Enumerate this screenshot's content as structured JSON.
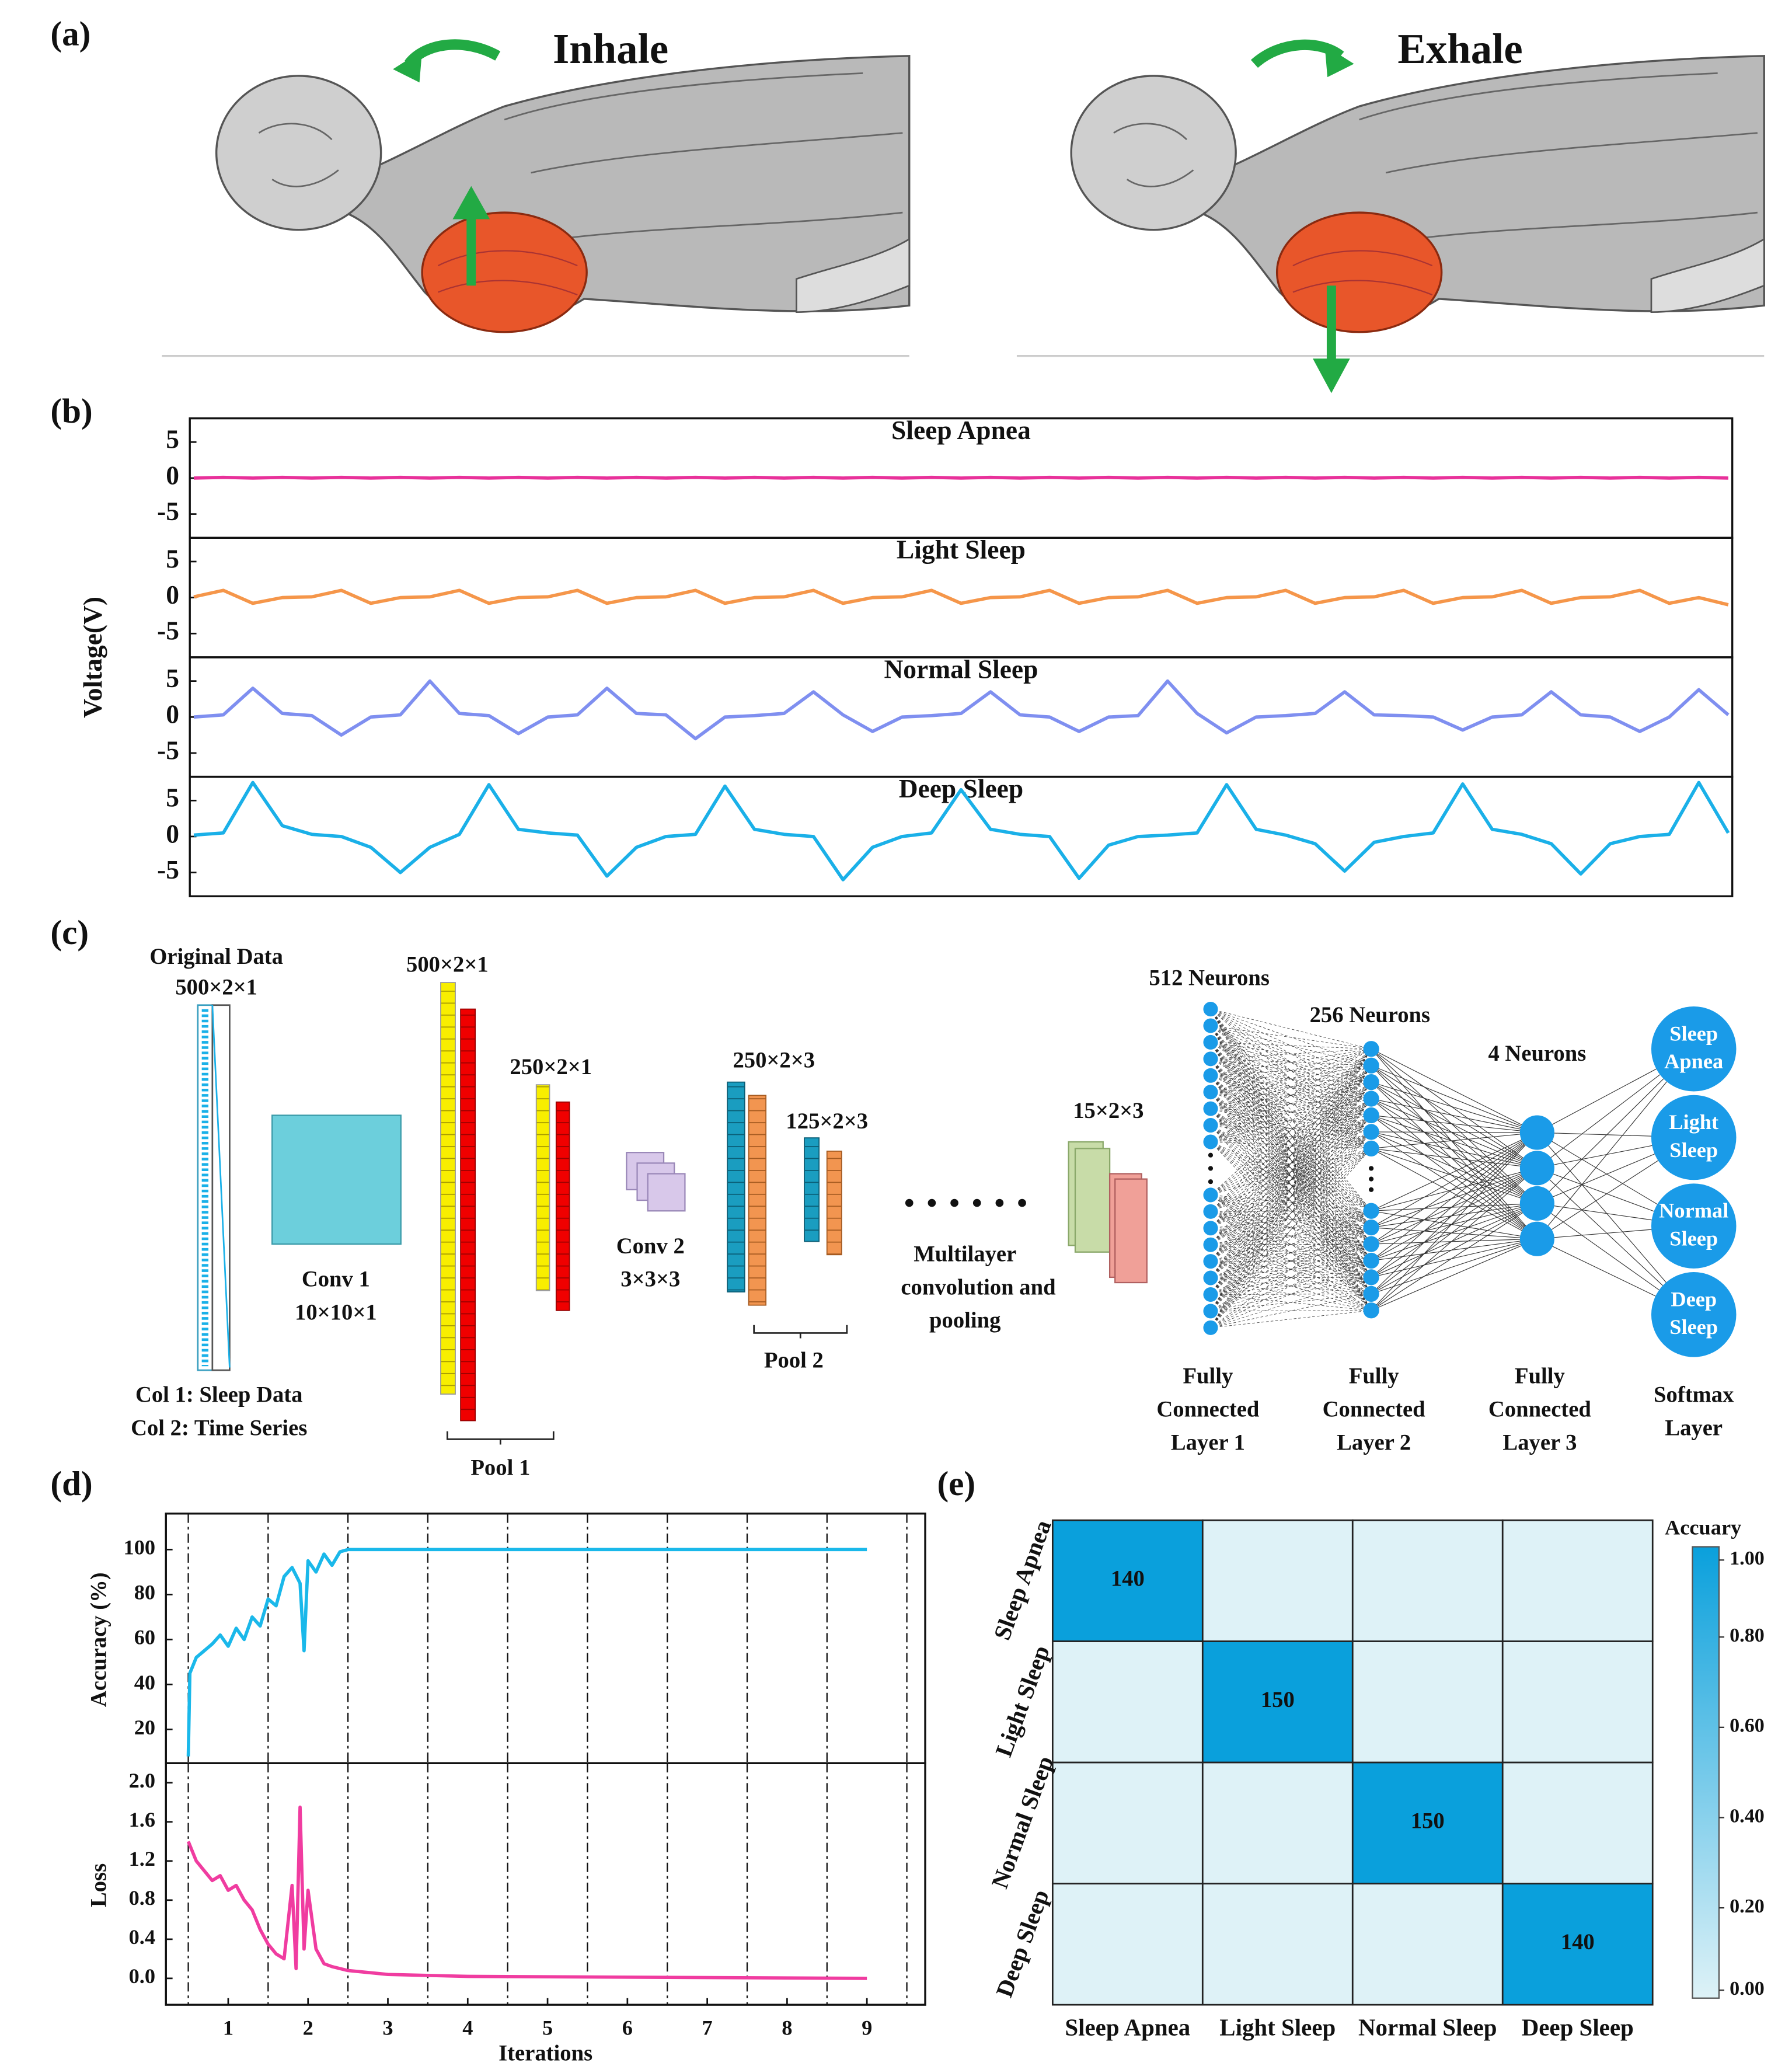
{
  "panel_a": {
    "label": "(a)",
    "inhale": "Inhale",
    "exhale": "Exhale"
  },
  "panel_b": {
    "label": "(b)",
    "ylabel": "Voltage(V)"
  },
  "panel_c": {
    "label": "(c)",
    "original_data": "Original Data",
    "original_size": "500×2×1",
    "col1": "Col 1: Sleep Data",
    "col2": "Col 2: Time  Series",
    "conv1": "Conv 1",
    "conv1_size": "10×10×1",
    "c1_size": "500×2×1",
    "p1_size": "250×2×1",
    "pool1": "Pool 1",
    "conv2": "Conv 2",
    "conv2_size": "3×3×3",
    "c2_size": "250×2×3",
    "p2_size": "125×2×3",
    "pool2": "Pool 2",
    "multi": [
      "Multilayer",
      "convolution and",
      "pooling"
    ],
    "last_size": "15×2×3",
    "n512": "512 Neurons",
    "n256": "256 Neurons",
    "n4": "4 Neurons",
    "outputs": [
      [
        "Sleep",
        "Apnea"
      ],
      [
        "Light",
        "Sleep"
      ],
      [
        "Normal",
        "Sleep"
      ],
      [
        "Deep",
        "Sleep"
      ]
    ],
    "fc1": [
      "Fully",
      "Connected",
      "Layer 1"
    ],
    "fc2": [
      "Fully",
      "Connected",
      "Layer 2"
    ],
    "fc3": [
      "Fully",
      "Connected",
      "Layer 3"
    ],
    "softmax": [
      "Softmax",
      "Layer"
    ]
  },
  "panel_d": {
    "label": "(d)"
  },
  "panel_e": {
    "label": "(e)"
  },
  "chart_data": [
    {
      "type": "line",
      "title": "Sleep Apnea",
      "ylim": [
        -8.3,
        8.3
      ],
      "yticks": [
        -5,
        0,
        5
      ],
      "series": [
        {
          "color": "#e8319a",
          "values": [
            0,
            0.1,
            0,
            0.1,
            0,
            0.1,
            0,
            0.1,
            0,
            0.1,
            0,
            0.1,
            0,
            0.1,
            0,
            0.1,
            0,
            0.1,
            0,
            0.1,
            0,
            0.1,
            0,
            0.1,
            0,
            0.1,
            0,
            0.1,
            0,
            0.1,
            0,
            0.1,
            0,
            0.1,
            0,
            0.1,
            0,
            0.1,
            0,
            0.1,
            0,
            0.1,
            0,
            0.1,
            0,
            0.1,
            0,
            0.1,
            0,
            0.1,
            0,
            0.1,
            0
          ]
        }
      ]
    },
    {
      "type": "line",
      "title": "Light Sleep",
      "ylim": [
        -8.3,
        8.3
      ],
      "yticks": [
        -5,
        0,
        5
      ],
      "series": [
        {
          "color": "#f5964a",
          "values": [
            0.1,
            1,
            -0.8,
            0,
            0.1,
            1,
            -0.8,
            0,
            0.1,
            1,
            -0.8,
            0,
            0.1,
            1,
            -0.8,
            0,
            0.1,
            1,
            -0.8,
            0,
            0.1,
            1,
            -0.8,
            0,
            0.1,
            1,
            -0.8,
            0,
            0.1,
            1,
            -0.8,
            0,
            0.1,
            1,
            -0.8,
            0,
            0.1,
            1,
            -0.8,
            0,
            0.1,
            1,
            -0.8,
            0,
            0.1,
            1,
            -0.8,
            0,
            0.1,
            1,
            -0.8,
            0,
            -1
          ]
        }
      ]
    },
    {
      "type": "line",
      "title": "Normal Sleep",
      "ylim": [
        -8.3,
        8.3
      ],
      "yticks": [
        -5,
        0,
        5
      ],
      "series": [
        {
          "color": "#7f8ff0",
          "values": [
            0,
            0.3,
            4,
            0.5,
            0.2,
            -2.5,
            0,
            0.3,
            5,
            0.5,
            0.2,
            -2.3,
            0,
            0.3,
            4,
            0.5,
            0.3,
            -3,
            0,
            0.2,
            0.5,
            3.5,
            0.3,
            -2,
            0,
            0.2,
            0.5,
            3.5,
            0.3,
            0,
            -2,
            0,
            0.2,
            5,
            0.5,
            -2.2,
            0,
            0.2,
            0.5,
            3.5,
            0.3,
            0.2,
            0,
            -1.8,
            0,
            0.3,
            3.5,
            0.3,
            0,
            -2,
            0,
            3.8,
            0.3
          ]
        }
      ]
    },
    {
      "type": "line",
      "title": "Deep Sleep",
      "ylim": [
        -8.3,
        8.3
      ],
      "yticks": [
        -5,
        0,
        5
      ],
      "series": [
        {
          "color": "#1ab0e8",
          "values": [
            0.2,
            0.5,
            7.5,
            1.5,
            0.3,
            0,
            -1.5,
            -5,
            -1.5,
            0.3,
            7.2,
            1,
            0.5,
            0.2,
            -5.5,
            -1.5,
            0,
            0.3,
            7,
            1,
            0.3,
            0,
            -6,
            -1.5,
            0,
            0.5,
            6.5,
            1,
            0.3,
            0,
            -5.8,
            -1.2,
            0,
            0.2,
            0.5,
            7.2,
            1,
            0.2,
            -1,
            -4.8,
            -0.8,
            0,
            0.5,
            7.3,
            1,
            0.3,
            -1,
            -5.2,
            -1,
            0,
            0.3,
            7.5,
            0.5
          ]
        }
      ]
    },
    {
      "type": "line",
      "ylabel": "Accuracy (%)",
      "xlim": [
        0.22,
        9.73
      ],
      "ylim": [
        5,
        116
      ],
      "yticks": [
        20,
        40,
        60,
        80,
        100
      ],
      "vlines": [
        0.5,
        1.5,
        2.5,
        3.5,
        4.5,
        5.5,
        6.5,
        7.5,
        8.5,
        9.5
      ],
      "x": [
        0.5,
        0.52,
        0.6,
        0.7,
        0.8,
        0.9,
        1.0,
        1.1,
        1.2,
        1.3,
        1.4,
        1.5,
        1.6,
        1.7,
        1.8,
        1.9,
        1.95,
        2.0,
        2.1,
        2.2,
        2.3,
        2.4,
        2.5,
        9
      ],
      "series": [
        {
          "color": "#1ab8ea",
          "values": [
            8,
            45,
            52,
            55,
            58,
            62,
            57,
            65,
            60,
            70,
            66,
            78,
            75,
            88,
            92,
            85,
            55,
            95,
            90,
            98,
            93,
            99,
            100,
            100
          ]
        }
      ]
    },
    {
      "type": "line",
      "ylabel": "Loss",
      "xlabel": "Iterations",
      "xlim": [
        0.22,
        9.73
      ],
      "ylim": [
        -0.27,
        2.2
      ],
      "yticks": [
        {
          "value": 0,
          "label": "0.0"
        },
        0.4,
        0.8,
        1.2,
        1.6,
        {
          "value": 2,
          "label": "2.0"
        }
      ],
      "xticks": [
        1,
        2,
        3,
        4,
        5,
        6,
        7,
        8,
        9
      ],
      "vlines": [
        0.5,
        1.5,
        2.5,
        3.5,
        4.5,
        5.5,
        6.5,
        7.5,
        8.5,
        9.5
      ],
      "x": [
        0.5,
        0.6,
        0.7,
        0.8,
        0.9,
        1.0,
        1.1,
        1.2,
        1.3,
        1.4,
        1.5,
        1.6,
        1.7,
        1.8,
        1.85,
        1.9,
        1.95,
        2.0,
        2.1,
        2.2,
        2.3,
        2.5,
        3,
        4,
        9
      ],
      "series": [
        {
          "color": "#f03ca0",
          "values": [
            1.4,
            1.2,
            1.1,
            1.0,
            1.05,
            0.9,
            0.95,
            0.8,
            0.7,
            0.5,
            0.35,
            0.25,
            0.2,
            0.95,
            0.1,
            1.75,
            0.3,
            0.9,
            0.3,
            0.15,
            0.12,
            0.08,
            0.04,
            0.02,
            0
          ]
        }
      ]
    },
    {
      "type": "heatmap",
      "categories": [
        "Sleep Apnea",
        "Light Sleep",
        "Normal Sleep",
        "Deep Sleep"
      ],
      "values": [
        [
          140,
          0,
          0,
          0
        ],
        [
          0,
          150,
          0,
          0
        ],
        [
          0,
          0,
          150,
          0
        ],
        [
          0,
          0,
          0,
          140
        ]
      ],
      "colorbar_title": "Accuary",
      "clim": [
        0,
        1
      ],
      "cticks": [
        {
          "value": 0,
          "label": "0.00"
        },
        {
          "value": 0.2,
          "label": "0.20"
        },
        {
          "value": 0.4,
          "label": "0.40"
        },
        {
          "value": 0.6,
          "label": "0.60"
        },
        {
          "value": 0.8,
          "label": "0.80"
        },
        {
          "value": 1,
          "label": "1.00"
        }
      ],
      "colors": [
        "#def2f7",
        "#0aa0dc"
      ]
    }
  ]
}
